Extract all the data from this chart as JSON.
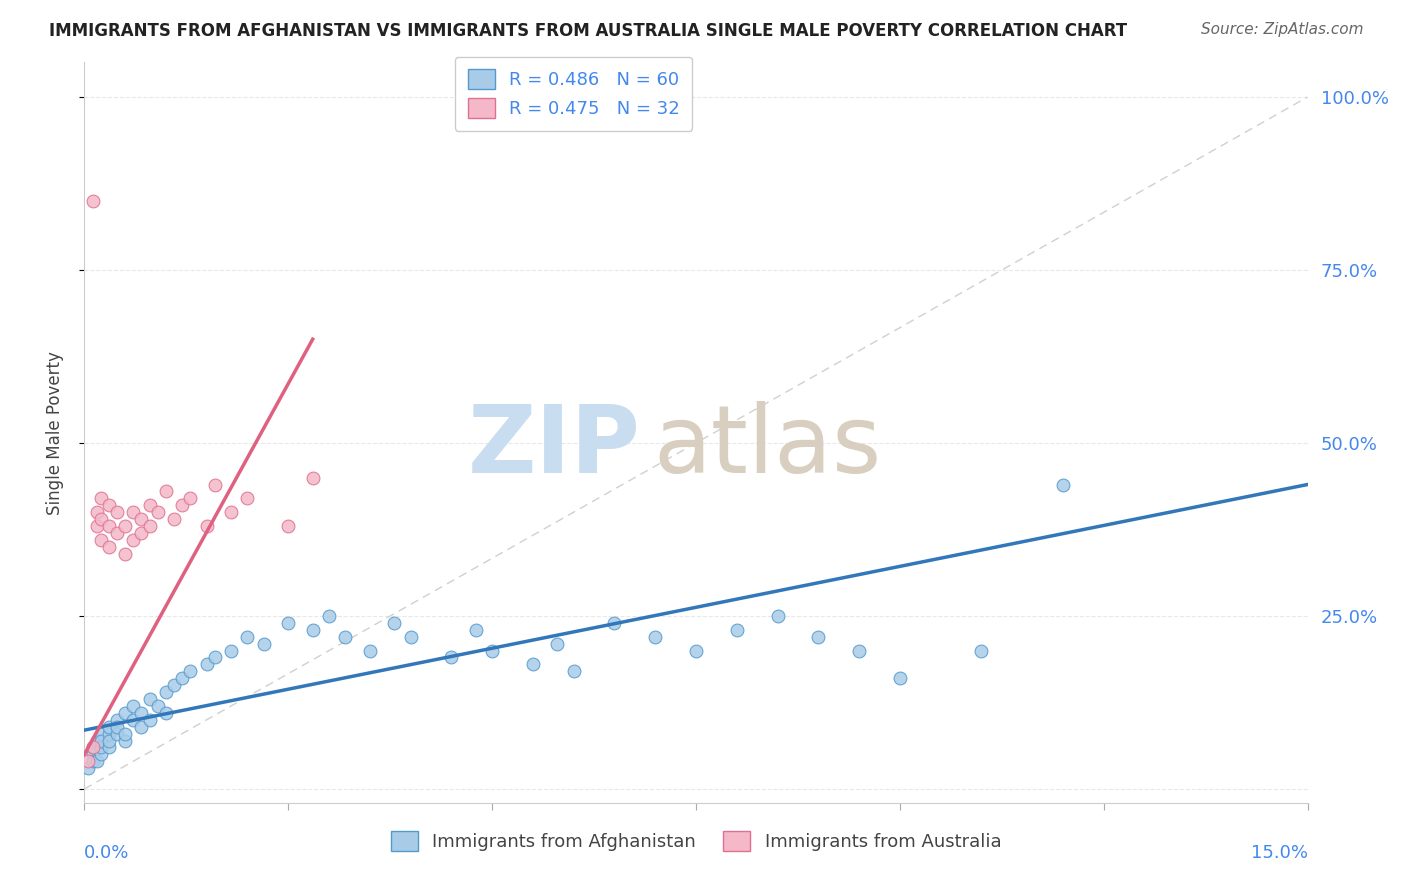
{
  "title": "IMMIGRANTS FROM AFGHANISTAN VS IMMIGRANTS FROM AUSTRALIA SINGLE MALE POVERTY CORRELATION CHART",
  "source": "Source: ZipAtlas.com",
  "ylabel": "Single Male Poverty",
  "r_afghanistan": 0.486,
  "n_afghanistan": 60,
  "r_australia": 0.475,
  "n_australia": 32,
  "color_afghanistan": "#a8cce8",
  "color_australia": "#f4b8c8",
  "edge_afghanistan": "#5599cc",
  "edge_australia": "#e07090",
  "color_line_afghanistan": "#3377bb",
  "color_line_australia": "#e06080",
  "watermark_zip_color": "#c8ddf0",
  "watermark_atlas_color": "#c8ddf0",
  "background_color": "#ffffff",
  "grid_color": "#e8e8e8",
  "right_tick_color": "#4488ee",
  "ref_line_color": "#d0d0d0",
  "xlim": [
    0.0,
    0.15
  ],
  "ylim": [
    -0.02,
    1.05
  ],
  "y_ticks": [
    0.0,
    0.25,
    0.5,
    0.75,
    1.0
  ],
  "y_tick_labels": [
    "",
    "25.0%",
    "50.0%",
    "75.0%",
    "100.0%"
  ],
  "x_ticks": [
    0.0,
    0.025,
    0.05,
    0.075,
    0.1,
    0.125,
    0.15
  ],
  "af_x": [
    0.0005,
    0.001,
    0.001,
    0.001,
    0.0015,
    0.0015,
    0.002,
    0.002,
    0.002,
    0.002,
    0.003,
    0.003,
    0.003,
    0.003,
    0.004,
    0.004,
    0.004,
    0.005,
    0.005,
    0.005,
    0.006,
    0.006,
    0.007,
    0.007,
    0.008,
    0.008,
    0.009,
    0.01,
    0.01,
    0.011,
    0.012,
    0.013,
    0.015,
    0.016,
    0.018,
    0.02,
    0.022,
    0.025,
    0.028,
    0.03,
    0.032,
    0.035,
    0.038,
    0.04,
    0.045,
    0.048,
    0.05,
    0.055,
    0.058,
    0.06,
    0.065,
    0.07,
    0.075,
    0.08,
    0.085,
    0.09,
    0.095,
    0.1,
    0.11,
    0.12
  ],
  "af_y": [
    0.03,
    0.05,
    0.04,
    0.06,
    0.04,
    0.07,
    0.05,
    0.06,
    0.08,
    0.07,
    0.06,
    0.08,
    0.07,
    0.09,
    0.08,
    0.1,
    0.09,
    0.07,
    0.11,
    0.08,
    0.1,
    0.12,
    0.09,
    0.11,
    0.13,
    0.1,
    0.12,
    0.14,
    0.11,
    0.15,
    0.16,
    0.17,
    0.18,
    0.19,
    0.2,
    0.22,
    0.21,
    0.24,
    0.23,
    0.25,
    0.22,
    0.2,
    0.24,
    0.22,
    0.19,
    0.23,
    0.2,
    0.18,
    0.21,
    0.17,
    0.24,
    0.22,
    0.2,
    0.23,
    0.25,
    0.22,
    0.2,
    0.16,
    0.2,
    0.44
  ],
  "au_x": [
    0.0005,
    0.001,
    0.001,
    0.0015,
    0.0015,
    0.002,
    0.002,
    0.002,
    0.003,
    0.003,
    0.003,
    0.004,
    0.004,
    0.005,
    0.005,
    0.006,
    0.006,
    0.007,
    0.007,
    0.008,
    0.008,
    0.009,
    0.01,
    0.011,
    0.012,
    0.013,
    0.015,
    0.016,
    0.018,
    0.02,
    0.025,
    0.028
  ],
  "au_y": [
    0.04,
    0.06,
    0.85,
    0.38,
    0.4,
    0.36,
    0.39,
    0.42,
    0.35,
    0.38,
    0.41,
    0.37,
    0.4,
    0.34,
    0.38,
    0.36,
    0.4,
    0.37,
    0.39,
    0.38,
    0.41,
    0.4,
    0.43,
    0.39,
    0.41,
    0.42,
    0.38,
    0.44,
    0.4,
    0.42,
    0.38,
    0.45
  ],
  "af_trend_x": [
    0.0,
    0.15
  ],
  "af_trend_y": [
    0.085,
    0.44
  ],
  "au_trend_x": [
    0.0,
    0.028
  ],
  "au_trend_y": [
    0.05,
    0.65
  ]
}
